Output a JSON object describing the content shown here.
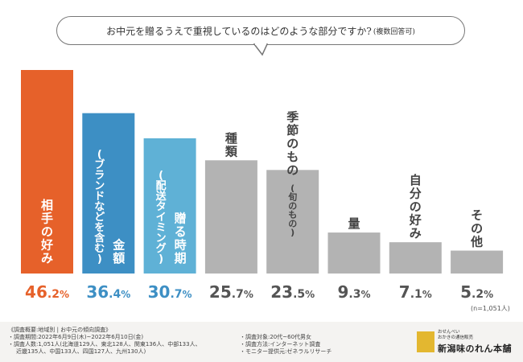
{
  "title": {
    "main": "お中元を贈るうえで重視しているのはどのような部分ですか?",
    "sub": "(複数回答可)"
  },
  "sample_size": "(n=1,051人)",
  "colors": {
    "primary": "#e6612a",
    "secondary1": "#3d8fc4",
    "secondary2": "#5fb1d6",
    "other": "#b3b3b3",
    "value_primary": "#e6612a",
    "value_blue": "#3d8fc4",
    "value_gray": "#555555"
  },
  "chart_data": {
    "type": "bar",
    "title": "お中元を贈るうえで重視しているのはどのような部分ですか?(複数回答可)",
    "unit": "%",
    "ylim": [
      0,
      50
    ],
    "categories": [
      {
        "main": "相手の好み",
        "paren": "",
        "value": 46.2,
        "style": "primary"
      },
      {
        "main": "金額",
        "paren": "ブランドなどを含む",
        "value": 36.4,
        "style": "secondary1"
      },
      {
        "main": "贈る時期",
        "paren": "配送タイミング",
        "value": 30.7,
        "style": "secondary2"
      },
      {
        "main": "種類",
        "paren": "",
        "value": 25.7,
        "style": "other"
      },
      {
        "main": "季節のもの",
        "paren": "旬のもの",
        "value": 23.5,
        "style": "other"
      },
      {
        "main": "量",
        "paren": "",
        "value": 9.3,
        "style": "other"
      },
      {
        "main": "自分の好み",
        "paren": "",
        "value": 7.1,
        "style": "other"
      },
      {
        "main": "その他",
        "paren": "",
        "value": 5.2,
        "style": "other"
      }
    ]
  },
  "survey": {
    "overview": "《調査概要:地域別 | お中元の傾向調査》",
    "period": "・調査期間:2022年6月9日(木)~2022年6月10日(金)",
    "count_line1": "・調査人数:1,051人(北海道129人、東北128人、関東136人、中部133人、",
    "count_line2": "近畿135人、中国133人、四国127人、九州130人)",
    "target": "・調査対象:20代~60代男女",
    "method": "・調査方法:インターネット調査",
    "provider": "・モニター提供元:ゼネラルリサーチ"
  },
  "logo": {
    "line1": "おせんべい",
    "line2": "おかきの通信販売",
    "name": "新潟味のれん本舗"
  }
}
